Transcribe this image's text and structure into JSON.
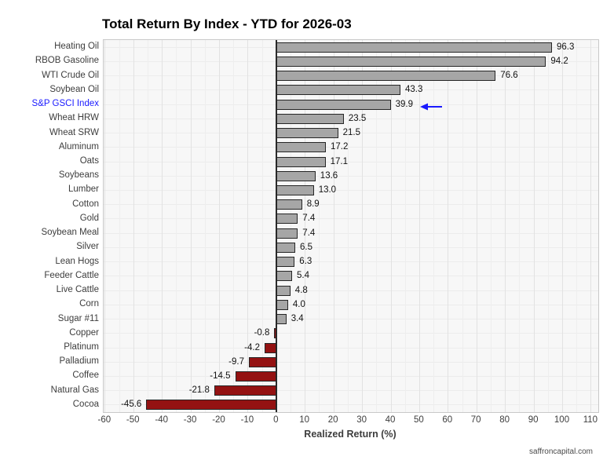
{
  "watermark": "saffroncapital.com",
  "chart_data": {
    "type": "bar",
    "orientation": "horizontal",
    "title": "Total Return By Index - YTD for 2026-03",
    "xlabel": "Realized Return (%)",
    "ylabel": "",
    "categories": [
      "Heating Oil",
      "RBOB Gasoline",
      "WTI Crude Oil",
      "Soybean Oil",
      "S&P GSCI Index",
      "Wheat HRW",
      "Wheat SRW",
      "Aluminum",
      "Oats",
      "Soybeans",
      "Lumber",
      "Cotton",
      "Gold",
      "Soybean Meal",
      "Silver",
      "Lean Hogs",
      "Feeder Cattle",
      "Live Cattle",
      "Corn",
      "Sugar #11",
      "Copper",
      "Platinum",
      "Palladium",
      "Coffee",
      "Natural Gas",
      "Cocoa"
    ],
    "values": [
      96.3,
      94.2,
      76.6,
      43.3,
      39.9,
      23.5,
      21.5,
      17.2,
      17.1,
      13.6,
      13.0,
      8.9,
      7.4,
      7.4,
      6.5,
      6.3,
      5.4,
      4.8,
      4.0,
      3.4,
      -0.8,
      -4.2,
      -9.7,
      -14.5,
      -21.8,
      -45.6
    ],
    "value_labels": [
      "96.3",
      "94.2",
      "76.6",
      "43.3",
      "39.9",
      "23.5",
      "21.5",
      "17.2",
      "17.1",
      "13.6",
      "13.0",
      "8.9",
      "7.4",
      "7.4",
      "6.5",
      "6.3",
      "5.4",
      "4.8",
      "4.0",
      "3.4",
      "-0.8",
      "-4.2",
      "-9.7",
      "-14.5",
      "-21.8",
      "-45.6"
    ],
    "xticks": [
      -60,
      -50,
      -40,
      -30,
      -20,
      -10,
      0,
      10,
      20,
      30,
      40,
      50,
      60,
      70,
      80,
      90,
      100,
      110
    ],
    "xlim": [
      -60.5,
      112.5
    ],
    "grid": true,
    "legend": false,
    "gridline_step_minor": 5,
    "highlight": {
      "category": "S&P GSCI Index",
      "index": 4,
      "color": "#1a1aff",
      "marker": "left-arrow"
    },
    "colors": {
      "positive_bar": "#a6a6a6",
      "negative_bar": "#941212",
      "bar_edge": "#262626",
      "plot_bg": "#f7f7f7",
      "zero_line": "#2b2b2b",
      "axis_text": "#3d3d3d",
      "value_text": "#111111",
      "highlight_text": "#1a1aff"
    }
  }
}
